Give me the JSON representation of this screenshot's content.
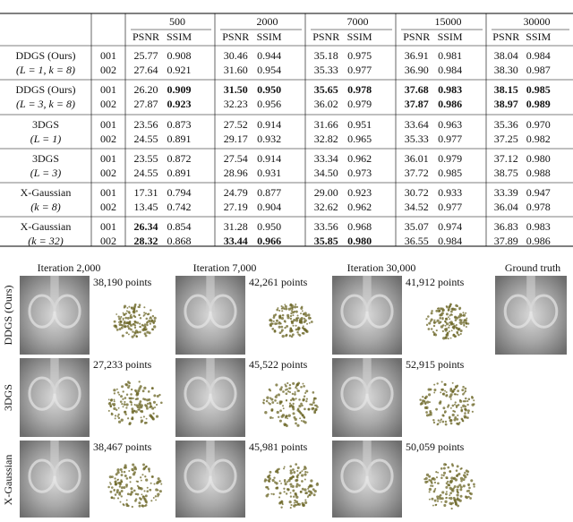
{
  "table": {
    "iterations": [
      "500",
      "2000",
      "7000",
      "15000",
      "30000"
    ],
    "metrics": [
      "PSNR",
      "SSIM"
    ],
    "groups": [
      {
        "method": "DDGS (Ours)",
        "params": "(L = 1, k = 8)",
        "rows": [
          {
            "id": "001",
            "values": [
              "25.77",
              "0.908",
              "30.46",
              "0.944",
              "35.18",
              "0.975",
              "36.91",
              "0.981",
              "38.04",
              "0.984"
            ],
            "bold": []
          },
          {
            "id": "002",
            "values": [
              "27.64",
              "0.921",
              "31.60",
              "0.954",
              "35.33",
              "0.977",
              "36.90",
              "0.984",
              "38.30",
              "0.987"
            ],
            "bold": []
          }
        ]
      },
      {
        "method": "DDGS (Ours)",
        "params": "(L = 3, k = 8)",
        "rows": [
          {
            "id": "001",
            "values": [
              "26.20",
              "0.909",
              "31.50",
              "0.950",
              "35.65",
              "0.978",
              "37.68",
              "0.983",
              "38.15",
              "0.985"
            ],
            "bold": [
              1,
              2,
              3,
              4,
              5,
              6,
              7,
              8,
              9
            ]
          },
          {
            "id": "002",
            "values": [
              "27.87",
              "0.923",
              "32.23",
              "0.956",
              "36.02",
              "0.979",
              "37.87",
              "0.986",
              "38.97",
              "0.989"
            ],
            "bold": [
              1,
              6,
              7,
              8,
              9
            ]
          }
        ]
      },
      {
        "method": "3DGS",
        "params": "(L = 1)",
        "rows": [
          {
            "id": "001",
            "values": [
              "23.56",
              "0.873",
              "27.52",
              "0.914",
              "31.66",
              "0.951",
              "33.64",
              "0.963",
              "35.36",
              "0.970"
            ],
            "bold": []
          },
          {
            "id": "002",
            "values": [
              "24.55",
              "0.891",
              "29.17",
              "0.932",
              "32.82",
              "0.965",
              "35.33",
              "0.977",
              "37.25",
              "0.982"
            ],
            "bold": []
          }
        ]
      },
      {
        "method": "3DGS",
        "params": "(L = 3)",
        "rows": [
          {
            "id": "001",
            "values": [
              "23.55",
              "0.872",
              "27.54",
              "0.914",
              "33.34",
              "0.962",
              "36.01",
              "0.979",
              "37.12",
              "0.980"
            ],
            "bold": []
          },
          {
            "id": "002",
            "values": [
              "24.55",
              "0.891",
              "28.96",
              "0.931",
              "34.50",
              "0.973",
              "37.72",
              "0.985",
              "38.75",
              "0.988"
            ],
            "bold": []
          }
        ]
      },
      {
        "method": "X-Gaussian",
        "params": "(k = 8)",
        "rows": [
          {
            "id": "001",
            "values": [
              "17.31",
              "0.794",
              "24.79",
              "0.877",
              "29.00",
              "0.923",
              "30.72",
              "0.933",
              "33.39",
              "0.947"
            ],
            "bold": []
          },
          {
            "id": "002",
            "values": [
              "13.45",
              "0.742",
              "27.19",
              "0.904",
              "32.62",
              "0.962",
              "34.52",
              "0.977",
              "36.04",
              "0.978"
            ],
            "bold": []
          }
        ]
      },
      {
        "method": "X-Gaussian",
        "params": "(k = 32)",
        "rows": [
          {
            "id": "001",
            "values": [
              "26.34",
              "0.854",
              "31.28",
              "0.950",
              "33.56",
              "0.968",
              "35.07",
              "0.974",
              "36.83",
              "0.983"
            ],
            "bold": [
              0
            ]
          },
          {
            "id": "002",
            "values": [
              "28.32",
              "0.868",
              "33.44",
              "0.966",
              "35.85",
              "0.980",
              "36.55",
              "0.984",
              "37.89",
              "0.986"
            ],
            "bold": [
              0,
              2,
              3,
              4,
              5
            ]
          }
        ]
      }
    ]
  },
  "figure": {
    "columns": [
      "Iteration 2,000",
      "Iteration 7,000",
      "Iteration 30,000",
      "Ground truth"
    ],
    "rows": [
      {
        "label": "DDGS (Ours)",
        "points": [
          "38,190 points",
          "42,261 points",
          "41,912 points"
        ]
      },
      {
        "label": "3DGS",
        "points": [
          "27,233 points",
          "45,522 points",
          "52,915 points"
        ]
      },
      {
        "label": "X-Gaussian",
        "points": [
          "38,467 points",
          "45,981 points",
          "50,059 points"
        ]
      }
    ]
  }
}
